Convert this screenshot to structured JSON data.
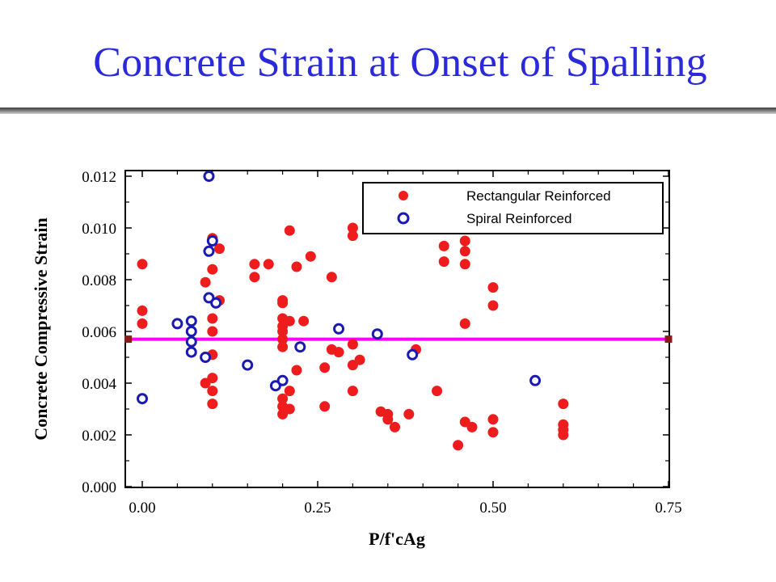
{
  "slide": {
    "title": "Concrete Strain at Onset of Spalling"
  },
  "colors": {
    "rect": "#ee1c1c",
    "spiral": "#1a1ab0",
    "threshold": "#ff00ff",
    "threshold_end": "#8b1a1a"
  },
  "chart_data": {
    "type": "scatter",
    "title": "",
    "xlabel": "P/f'cAg",
    "ylabel": "Concrete Compressive Strain",
    "xlim": [
      0.0,
      0.75
    ],
    "ylim": [
      0.0,
      0.012
    ],
    "x_ticks": [
      "0.00",
      "0.25",
      "0.50",
      "0.75"
    ],
    "x_tick_values": [
      0.0,
      0.25,
      0.5,
      0.75
    ],
    "y_ticks": [
      "0.000",
      "0.002",
      "0.004",
      "0.006",
      "0.008",
      "0.010",
      "0.012"
    ],
    "y_tick_values": [
      0.0,
      0.002,
      0.004,
      0.006,
      0.008,
      0.01,
      0.012
    ],
    "grid": false,
    "legend_position": "top-right",
    "threshold_line": {
      "y": 0.0057,
      "x": [
        -0.02,
        0.75
      ]
    },
    "series": [
      {
        "name": "Rectangular Reinforced",
        "marker": "filled-circle",
        "points": [
          [
            0.0,
            0.0086
          ],
          [
            0.0,
            0.0068
          ],
          [
            0.0,
            0.0063
          ],
          [
            0.09,
            0.0079
          ],
          [
            0.09,
            0.004
          ],
          [
            0.1,
            0.0096
          ],
          [
            0.1,
            0.0095
          ],
          [
            0.1,
            0.0084
          ],
          [
            0.1,
            0.0065
          ],
          [
            0.1,
            0.006
          ],
          [
            0.1,
            0.0051
          ],
          [
            0.1,
            0.0042
          ],
          [
            0.1,
            0.0037
          ],
          [
            0.1,
            0.0032
          ],
          [
            0.11,
            0.0092
          ],
          [
            0.11,
            0.0072
          ],
          [
            0.16,
            0.0086
          ],
          [
            0.16,
            0.0081
          ],
          [
            0.18,
            0.0086
          ],
          [
            0.2,
            0.0072
          ],
          [
            0.2,
            0.0071
          ],
          [
            0.2,
            0.0065
          ],
          [
            0.2,
            0.0062
          ],
          [
            0.2,
            0.006
          ],
          [
            0.2,
            0.0057
          ],
          [
            0.2,
            0.0054
          ],
          [
            0.2,
            0.0041
          ],
          [
            0.2,
            0.0034
          ],
          [
            0.2,
            0.0031
          ],
          [
            0.2,
            0.0028
          ],
          [
            0.21,
            0.0099
          ],
          [
            0.21,
            0.0064
          ],
          [
            0.21,
            0.0037
          ],
          [
            0.21,
            0.003
          ],
          [
            0.22,
            0.0085
          ],
          [
            0.22,
            0.0045
          ],
          [
            0.23,
            0.0064
          ],
          [
            0.24,
            0.0089
          ],
          [
            0.26,
            0.0046
          ],
          [
            0.26,
            0.0031
          ],
          [
            0.27,
            0.0081
          ],
          [
            0.27,
            0.0053
          ],
          [
            0.28,
            0.0052
          ],
          [
            0.3,
            0.01
          ],
          [
            0.3,
            0.0097
          ],
          [
            0.3,
            0.0055
          ],
          [
            0.3,
            0.0047
          ],
          [
            0.3,
            0.0037
          ],
          [
            0.31,
            0.0049
          ],
          [
            0.34,
            0.0029
          ],
          [
            0.35,
            0.0028
          ],
          [
            0.35,
            0.0026
          ],
          [
            0.36,
            0.0023
          ],
          [
            0.38,
            0.0028
          ],
          [
            0.39,
            0.0053
          ],
          [
            0.42,
            0.0037
          ],
          [
            0.43,
            0.0093
          ],
          [
            0.43,
            0.0087
          ],
          [
            0.45,
            0.0016
          ],
          [
            0.46,
            0.0095
          ],
          [
            0.46,
            0.0091
          ],
          [
            0.46,
            0.0086
          ],
          [
            0.46,
            0.0063
          ],
          [
            0.46,
            0.0025
          ],
          [
            0.47,
            0.0023
          ],
          [
            0.5,
            0.0077
          ],
          [
            0.5,
            0.007
          ],
          [
            0.5,
            0.0026
          ],
          [
            0.5,
            0.0021
          ],
          [
            0.6,
            0.0032
          ],
          [
            0.6,
            0.0024
          ],
          [
            0.6,
            0.0022
          ],
          [
            0.6,
            0.002
          ]
        ]
      },
      {
        "name": "Spiral Reinforced",
        "marker": "open-circle",
        "points": [
          [
            0.0,
            0.0034
          ],
          [
            0.05,
            0.0063
          ],
          [
            0.07,
            0.0064
          ],
          [
            0.07,
            0.006
          ],
          [
            0.07,
            0.0056
          ],
          [
            0.07,
            0.0052
          ],
          [
            0.09,
            0.005
          ],
          [
            0.095,
            0.012
          ],
          [
            0.095,
            0.0091
          ],
          [
            0.095,
            0.0073
          ],
          [
            0.1,
            0.0095
          ],
          [
            0.105,
            0.0071
          ],
          [
            0.15,
            0.0047
          ],
          [
            0.19,
            0.0039
          ],
          [
            0.2,
            0.0041
          ],
          [
            0.225,
            0.0054
          ],
          [
            0.28,
            0.0061
          ],
          [
            0.335,
            0.0059
          ],
          [
            0.385,
            0.0051
          ],
          [
            0.56,
            0.0041
          ]
        ]
      }
    ]
  }
}
